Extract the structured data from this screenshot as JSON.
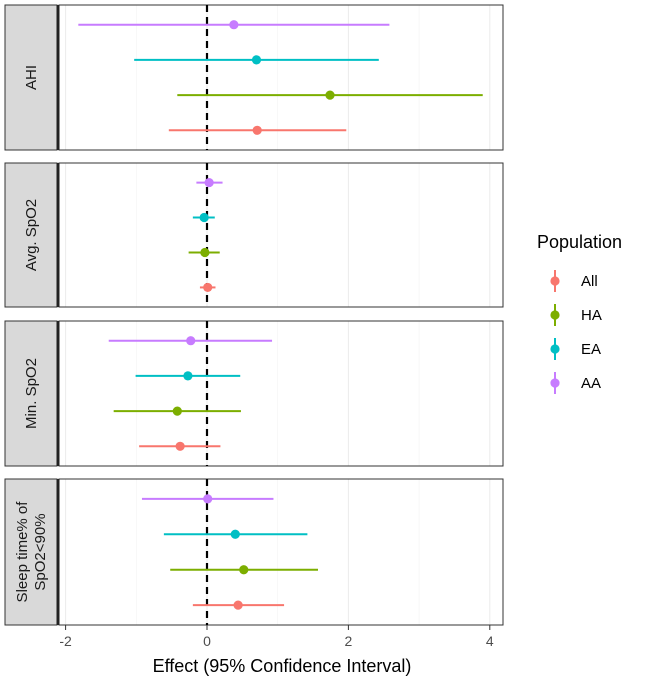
{
  "chart_data": {
    "type": "forest",
    "xlabel": "Effect (95% Confidence Interval)",
    "xlim": [
      -2.05,
      4.2
    ],
    "xticks": [
      -2,
      0,
      2,
      4
    ],
    "reference_line": 0,
    "grid": true,
    "legend": {
      "title": "Population",
      "position": "right",
      "entries": [
        {
          "name": "All",
          "color": "#F8766D"
        },
        {
          "name": "HA",
          "color": "#7CAE00"
        },
        {
          "name": "EA",
          "color": "#00BFC4"
        },
        {
          "name": "AA",
          "color": "#C77CFF"
        }
      ]
    },
    "facets": [
      {
        "label": "AHI",
        "label_lines": [
          "AHI"
        ],
        "estimates": [
          {
            "population": "AA",
            "estimate": 0.38,
            "lower": -1.82,
            "upper": 2.58
          },
          {
            "population": "EA",
            "estimate": 0.7,
            "lower": -1.03,
            "upper": 2.43
          },
          {
            "population": "HA",
            "estimate": 1.74,
            "lower": -0.42,
            "upper": 3.9
          },
          {
            "population": "All",
            "estimate": 0.71,
            "lower": -0.54,
            "upper": 1.97
          }
        ]
      },
      {
        "label": "Avg. SpO2",
        "label_lines": [
          "Avg. SpO2"
        ],
        "estimates": [
          {
            "population": "AA",
            "estimate": 0.03,
            "lower": -0.15,
            "upper": 0.22
          },
          {
            "population": "EA",
            "estimate": -0.04,
            "lower": -0.2,
            "upper": 0.11
          },
          {
            "population": "HA",
            "estimate": -0.03,
            "lower": -0.26,
            "upper": 0.18
          },
          {
            "population": "All",
            "estimate": 0.01,
            "lower": -0.1,
            "upper": 0.12
          }
        ]
      },
      {
        "label": "Min. SpO2",
        "label_lines": [
          "Min. SpO2"
        ],
        "estimates": [
          {
            "population": "AA",
            "estimate": -0.23,
            "lower": -1.39,
            "upper": 0.92
          },
          {
            "population": "EA",
            "estimate": -0.27,
            "lower": -1.01,
            "upper": 0.47
          },
          {
            "population": "HA",
            "estimate": -0.42,
            "lower": -1.32,
            "upper": 0.48
          },
          {
            "population": "All",
            "estimate": -0.38,
            "lower": -0.96,
            "upper": 0.19
          }
        ]
      },
      {
        "label": "Sleep time% of SpO2<90%",
        "label_lines": [
          "Sleep time% of",
          "SpO2<90%"
        ],
        "estimates": [
          {
            "population": "AA",
            "estimate": 0.01,
            "lower": -0.92,
            "upper": 0.94
          },
          {
            "population": "EA",
            "estimate": 0.4,
            "lower": -0.61,
            "upper": 1.42
          },
          {
            "population": "HA",
            "estimate": 0.52,
            "lower": -0.52,
            "upper": 1.57
          },
          {
            "population": "All",
            "estimate": 0.44,
            "lower": -0.2,
            "upper": 1.09
          }
        ]
      }
    ]
  }
}
